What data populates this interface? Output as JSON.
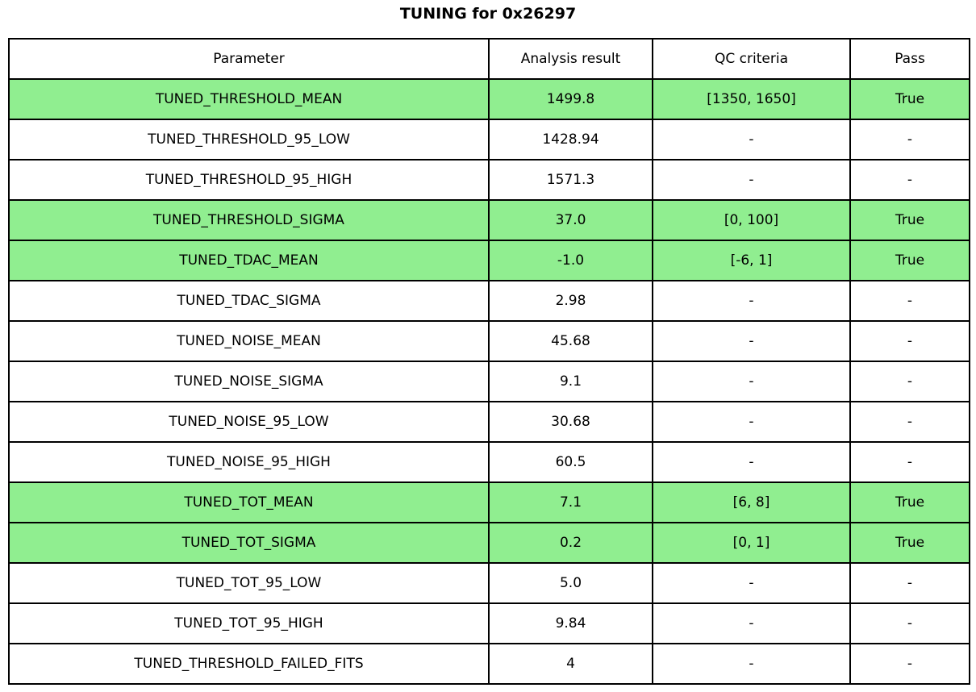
{
  "title": "TUNING for 0x26297",
  "colors": {
    "highlight_green": "#90EE90",
    "border": "#000000",
    "background": "#FFFFFF",
    "text": "#000000"
  },
  "chart_data": {
    "type": "table",
    "title": "TUNING for 0x26297",
    "columns": [
      "Parameter",
      "Analysis result",
      "QC criteria",
      "Pass"
    ],
    "rows": [
      {
        "parameter": "TUNED_THRESHOLD_MEAN",
        "result": "1499.8",
        "qc": "[1350, 1650]",
        "pass": "True",
        "highlighted": true
      },
      {
        "parameter": "TUNED_THRESHOLD_95_LOW",
        "result": "1428.94",
        "qc": "-",
        "pass": "-",
        "highlighted": false
      },
      {
        "parameter": "TUNED_THRESHOLD_95_HIGH",
        "result": "1571.3",
        "qc": "-",
        "pass": "-",
        "highlighted": false
      },
      {
        "parameter": "TUNED_THRESHOLD_SIGMA",
        "result": "37.0",
        "qc": "[0, 100]",
        "pass": "True",
        "highlighted": true
      },
      {
        "parameter": "TUNED_TDAC_MEAN",
        "result": "-1.0",
        "qc": "[-6, 1]",
        "pass": "True",
        "highlighted": true
      },
      {
        "parameter": "TUNED_TDAC_SIGMA",
        "result": "2.98",
        "qc": "-",
        "pass": "-",
        "highlighted": false
      },
      {
        "parameter": "TUNED_NOISE_MEAN",
        "result": "45.68",
        "qc": "-",
        "pass": "-",
        "highlighted": false
      },
      {
        "parameter": "TUNED_NOISE_SIGMA",
        "result": "9.1",
        "qc": "-",
        "pass": "-",
        "highlighted": false
      },
      {
        "parameter": "TUNED_NOISE_95_LOW",
        "result": "30.68",
        "qc": "-",
        "pass": "-",
        "highlighted": false
      },
      {
        "parameter": "TUNED_NOISE_95_HIGH",
        "result": "60.5",
        "qc": "-",
        "pass": "-",
        "highlighted": false
      },
      {
        "parameter": "TUNED_TOT_MEAN",
        "result": "7.1",
        "qc": "[6, 8]",
        "pass": "True",
        "highlighted": true
      },
      {
        "parameter": "TUNED_TOT_SIGMA",
        "result": "0.2",
        "qc": "[0, 1]",
        "pass": "True",
        "highlighted": true
      },
      {
        "parameter": "TUNED_TOT_95_LOW",
        "result": "5.0",
        "qc": "-",
        "pass": "-",
        "highlighted": false
      },
      {
        "parameter": "TUNED_TOT_95_HIGH",
        "result": "9.84",
        "qc": "-",
        "pass": "-",
        "highlighted": false
      },
      {
        "parameter": "TUNED_THRESHOLD_FAILED_FITS",
        "result": "4",
        "qc": "-",
        "pass": "-",
        "highlighted": false
      }
    ]
  }
}
